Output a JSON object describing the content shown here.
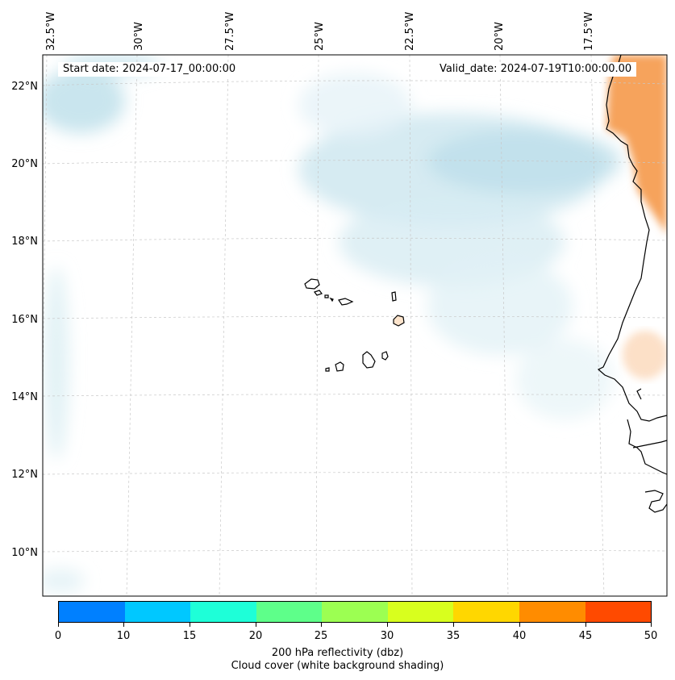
{
  "map": {
    "start_date": "Start date: 2024-07-17_00:00:00",
    "valid_date": "Valid_date: 2024-07-19T10:00:00.00",
    "lon_labels": [
      "32.5°W",
      "30°W",
      "27.5°W",
      "25°W",
      "22.5°W",
      "20°W",
      "17.5°W"
    ],
    "lat_labels": [
      "22°N",
      "20°N",
      "18°N",
      "16°N",
      "14°N",
      "12°N",
      "10°N"
    ]
  },
  "colorbar": {
    "ticks": [
      "0",
      "10",
      "15",
      "20",
      "25",
      "30",
      "35",
      "40",
      "45",
      "50"
    ],
    "colors": [
      "#0080ff",
      "#00c8ff",
      "#1effd8",
      "#5eff8a",
      "#9cff52",
      "#d8ff1e",
      "#ffd700",
      "#ff8c00",
      "#ff4a00"
    ],
    "title_line1": "200 hPa reflectivity (dbz)",
    "title_line2": "Cloud cover (white background shading)"
  }
}
